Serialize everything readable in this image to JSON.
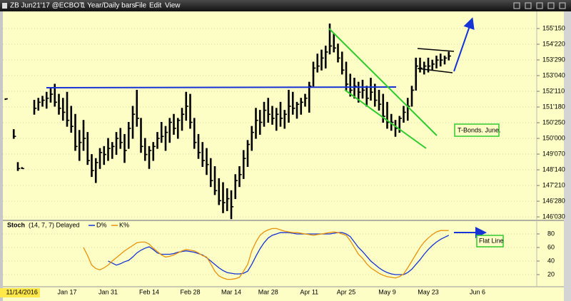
{
  "window": {
    "symbol": "ZB Jun21'17 @ECBOT",
    "period": "1 Year/Daily bars",
    "menu": [
      "File",
      "Edit",
      "View"
    ]
  },
  "chart_data": [
    {
      "type": "hlc",
      "color": "#000000",
      "categories": [
        null,
        null,
        null,
        null,
        "11/14/2016",
        null,
        null,
        null,
        null,
        null,
        null,
        null,
        null,
        null,
        null,
        "Jan 17",
        null,
        null,
        null,
        null,
        null,
        null,
        null,
        null,
        null,
        "Jan 31",
        null,
        null,
        null,
        null,
        null,
        null,
        null,
        null,
        null,
        "Feb 14",
        null,
        null,
        null,
        null,
        null,
        null,
        null,
        null,
        null,
        "Feb 28",
        null,
        null,
        null,
        null,
        null,
        null,
        null,
        null,
        null,
        "Mar 14",
        null,
        null,
        null,
        null,
        null,
        null,
        null,
        null,
        "Mar 28",
        null,
        null,
        null,
        null,
        null,
        null,
        null,
        null,
        null,
        "Apr 11",
        null,
        null,
        null,
        null,
        null,
        null,
        null,
        null,
        "Apr 25",
        null,
        null,
        null,
        null,
        null,
        null,
        null,
        null,
        null,
        "May 9",
        null,
        null,
        null,
        null,
        null,
        null,
        null,
        null,
        null,
        "May 23",
        null,
        null,
        null,
        null,
        null,
        null,
        null,
        null,
        null,
        null,
        null,
        "Jun 6"
      ],
      "high": [
        151.97,
        null,
        150.44,
        148.8,
        148.55,
        null,
        null,
        151.9,
        152.0,
        152.1,
        152.3,
        152.5,
        152.7,
        152.2,
        152.0,
        152.3,
        151.6,
        151.2,
        150.4,
        150.9,
        150.3,
        149.2,
        149.0,
        149.5,
        149.6,
        150.0,
        149.8,
        150.3,
        150.5,
        150.2,
        150.8,
        151.6,
        152.4,
        151.0,
        150.0,
        149.6,
        149.8,
        150.3,
        150.8,
        150.6,
        151.0,
        151.2,
        151.0,
        151.5,
        152.3,
        152.2,
        151.0,
        150.2,
        149.8,
        149.5,
        149.0,
        148.6,
        148.0,
        147.8,
        147.5,
        147.4,
        148.2,
        148.6,
        149.4,
        149.9,
        150.6,
        151.5,
        151.4,
        151.8,
        152.0,
        151.6,
        151.5,
        151.8,
        151.4,
        152.4,
        152.3,
        151.8,
        152.0,
        152.2,
        152.8,
        153.8,
        154.2,
        154.4,
        154.6,
        155.7,
        155.2,
        154.7,
        154.3,
        153.8,
        153.2,
        153.0,
        152.8,
        152.9,
        152.6,
        153.0,
        152.7,
        152.4,
        152.2,
        151.8,
        151.2,
        150.9,
        151.1,
        151.6,
        152.0,
        152.6,
        154.0,
        154.0,
        153.8,
        154.0,
        153.9,
        154.1,
        154.2,
        154.1,
        154.3,
        null,
        null,
        null,
        null,
        null,
        null,
        null
      ],
      "low": [
        151.95,
        null,
        150.0,
        148.4,
        148.5,
        null,
        null,
        151.2,
        151.4,
        151.6,
        151.5,
        151.8,
        151.6,
        151.2,
        150.9,
        150.6,
        150.3,
        149.4,
        148.9,
        149.4,
        148.7,
        148.1,
        147.8,
        148.5,
        148.7,
        148.9,
        149.0,
        149.2,
        149.5,
        148.8,
        149.5,
        150.0,
        150.6,
        149.3,
        148.9,
        148.5,
        148.9,
        149.5,
        149.8,
        149.4,
        149.8,
        150.2,
        150.0,
        150.4,
        150.9,
        150.5,
        149.5,
        149.0,
        148.6,
        148.2,
        147.6,
        147.2,
        146.7,
        146.3,
        146.4,
        146.0,
        147.0,
        147.6,
        148.0,
        148.6,
        149.4,
        150.0,
        150.2,
        150.6,
        150.8,
        150.7,
        150.4,
        150.6,
        150.5,
        150.8,
        151.2,
        151.0,
        151.2,
        151.6,
        151.3,
        152.6,
        153.3,
        153.4,
        153.5,
        154.2,
        154.3,
        153.8,
        153.2,
        152.4,
        152.1,
        152.0,
        151.8,
        152.0,
        151.6,
        151.9,
        151.6,
        151.4,
        150.8,
        150.5,
        150.4,
        150.1,
        150.3,
        150.8,
        150.9,
        151.6,
        152.4,
        153.3,
        153.2,
        153.3,
        153.4,
        153.5,
        153.6,
        153.7,
        153.9,
        null,
        null,
        null,
        null,
        null,
        null,
        null
      ],
      "close": [
        151.97,
        null,
        150.1,
        148.5,
        148.5,
        null,
        null,
        151.5,
        151.8,
        151.9,
        152.0,
        152.2,
        151.8,
        151.5,
        151.3,
        150.9,
        150.6,
        149.6,
        149.8,
        150.0,
        148.9,
        148.4,
        148.8,
        149.3,
        149.2,
        149.5,
        149.6,
        150.0,
        149.8,
        149.4,
        150.5,
        151.2,
        151.0,
        149.6,
        149.2,
        149.4,
        149.6,
        150.0,
        150.1,
        150.3,
        150.8,
        150.5,
        150.9,
        151.2,
        151.6,
        150.8,
        149.8,
        149.3,
        148.9,
        148.7,
        147.9,
        147.4,
        146.9,
        146.8,
        147.0,
        146.6,
        147.9,
        148.2,
        149.0,
        149.7,
        150.3,
        150.9,
        150.8,
        151.4,
        151.2,
        151.0,
        151.2,
        151.0,
        151.2,
        151.6,
        151.5,
        151.7,
        151.8,
        152.0,
        152.6,
        153.5,
        153.6,
        154.0,
        154.3,
        154.6,
        154.5,
        154.0,
        153.4,
        152.7,
        152.4,
        152.6,
        152.3,
        152.4,
        152.0,
        152.3,
        151.9,
        151.7,
        151.1,
        150.8,
        150.8,
        150.5,
        151.0,
        151.3,
        151.6,
        152.4,
        153.6,
        153.5,
        153.6,
        153.6,
        153.7,
        153.9,
        153.9,
        154.0,
        154.1,
        null,
        null,
        null,
        null,
        null,
        null,
        null
      ],
      "ylim": [
        145.99,
        156.25
      ],
      "yticks": [
        {
          "value": 155.46875,
          "label": "155'150"
        },
        {
          "value": 154.6875,
          "label": "154'220"
        },
        {
          "value": 153.90625,
          "label": "153'290"
        },
        {
          "value": 153.125,
          "label": "153'040"
        },
        {
          "value": 152.34375,
          "label": "152'110"
        },
        {
          "value": 151.5625,
          "label": "151'180"
        },
        {
          "value": 150.78125,
          "label": "150'250"
        },
        {
          "value": 150.0,
          "label": "150'000"
        },
        {
          "value": 149.21875,
          "label": "149'070"
        },
        {
          "value": 148.4375,
          "label": "148'140"
        },
        {
          "value": 147.65625,
          "label": "147'210"
        },
        {
          "value": 146.875,
          "label": "146'280"
        },
        {
          "value": 146.09375,
          "label": "146'030"
        }
      ],
      "grid": true,
      "annotations": [
        "T-Bonds. June."
      ]
    },
    {
      "type": "line",
      "title": "Stoch",
      "subtitle": "(14, 7, 7) Delayed",
      "series": [
        {
          "name": "D%",
          "color": "#1634d6",
          "values": [
            null,
            null,
            null,
            null,
            null,
            null,
            null,
            null,
            null,
            null,
            null,
            null,
            null,
            null,
            null,
            null,
            null,
            null,
            null,
            null,
            null,
            null,
            null,
            null,
            null,
            40,
            37,
            34,
            36,
            39,
            41,
            46,
            52,
            56,
            59,
            61,
            57,
            52,
            50,
            50,
            50,
            51,
            53,
            54,
            55,
            54,
            53,
            51,
            49,
            45,
            40,
            35,
            30,
            26,
            23,
            22,
            21,
            21,
            22,
            25,
            35,
            47,
            58,
            67,
            74,
            78,
            80,
            82,
            82,
            82,
            81,
            80,
            80,
            80,
            80,
            80,
            80,
            80,
            80,
            80,
            81,
            82,
            82,
            80,
            76,
            68,
            60,
            54,
            47,
            40,
            35,
            30,
            26,
            23,
            21,
            20,
            20,
            20,
            23,
            28,
            35,
            42,
            50,
            57,
            63,
            68,
            72,
            75,
            78,
            null,
            null,
            null,
            null,
            null,
            null,
            null
          ]
        },
        {
          "name": "K%",
          "color": "#e8920c",
          "values": [
            null,
            null,
            null,
            null,
            null,
            null,
            null,
            null,
            null,
            null,
            null,
            null,
            null,
            null,
            null,
            null,
            null,
            null,
            null,
            60,
            48,
            34,
            29,
            27,
            30,
            34,
            40,
            45,
            50,
            55,
            59,
            63,
            67,
            68,
            68,
            65,
            59,
            54,
            49,
            46,
            47,
            49,
            52,
            55,
            57,
            56,
            55,
            52,
            48,
            46,
            36,
            25,
            18,
            15,
            13,
            13,
            14,
            16,
            25,
            35,
            55,
            68,
            78,
            83,
            86,
            88,
            88,
            86,
            84,
            83,
            82,
            82,
            81,
            80,
            79,
            78,
            79,
            80,
            81,
            82,
            83,
            82,
            80,
            78,
            70,
            60,
            50,
            44,
            36,
            30,
            26,
            22,
            19,
            17,
            16,
            15,
            17,
            21,
            30,
            40,
            50,
            60,
            68,
            74,
            79,
            83,
            85,
            85,
            85,
            null,
            null,
            null,
            null,
            null,
            null,
            null
          ]
        }
      ],
      "ylim": [
        4.2,
        96.8
      ],
      "yticks": [
        80,
        60,
        40,
        20
      ],
      "grid": true,
      "annotations": [
        "Flat Line"
      ]
    }
  ]
}
